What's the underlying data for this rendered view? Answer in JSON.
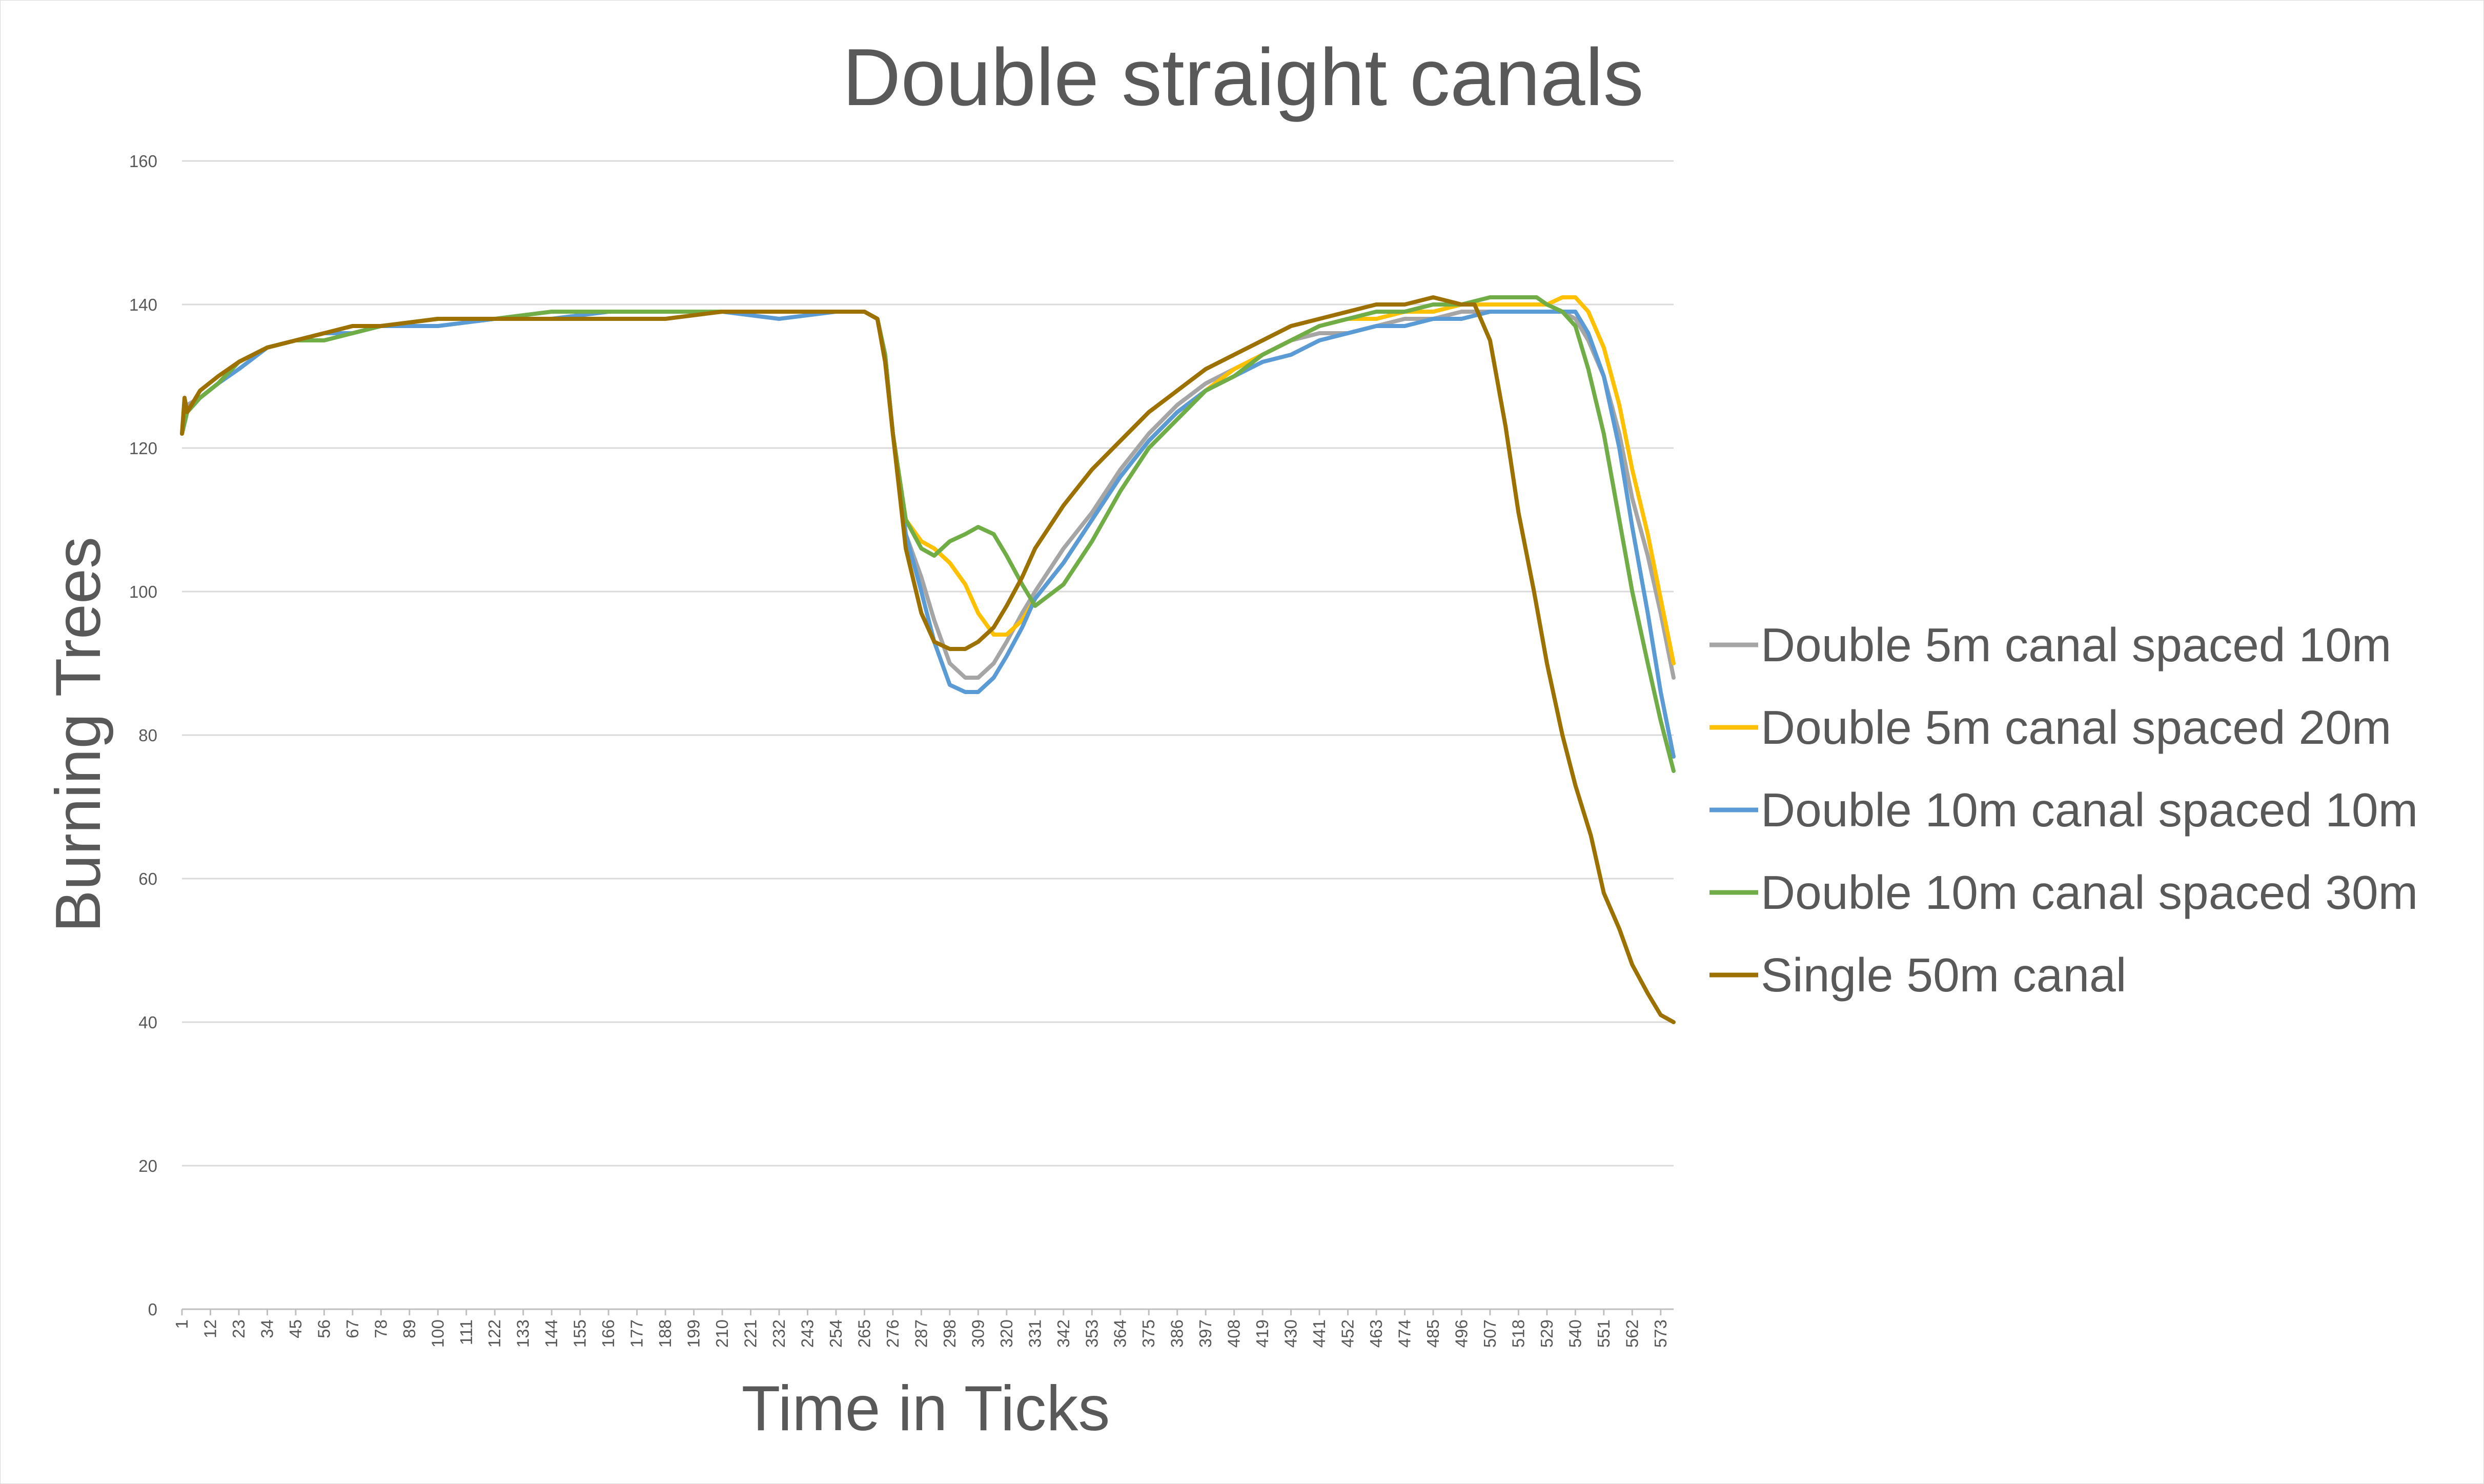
{
  "chart_data": {
    "type": "line",
    "title": "Double straight canals",
    "xlabel": "Time in Ticks",
    "ylabel": "Burning Trees",
    "ylim": [
      0,
      160
    ],
    "yticks": [
      0,
      20,
      40,
      60,
      80,
      100,
      120,
      140,
      160
    ],
    "xlim": [
      1,
      578
    ],
    "xticks": [
      1,
      12,
      23,
      34,
      45,
      56,
      67,
      78,
      89,
      100,
      111,
      122,
      133,
      144,
      155,
      166,
      177,
      188,
      199,
      210,
      221,
      232,
      243,
      254,
      265,
      276,
      287,
      298,
      309,
      320,
      331,
      342,
      353,
      364,
      375,
      386,
      397,
      408,
      419,
      430,
      441,
      452,
      463,
      474,
      485,
      496,
      507,
      518,
      529,
      540,
      551,
      562,
      573
    ],
    "grid": "horizontal",
    "legend_position": "right",
    "series": [
      {
        "name": "Double 5m canal spaced 10m",
        "color": "#a5a5a5",
        "x": [
          1,
          3,
          8,
          15,
          23,
          34,
          45,
          56,
          67,
          78,
          100,
          122,
          144,
          166,
          188,
          210,
          232,
          254,
          265,
          270,
          273,
          276,
          281,
          287,
          292,
          298,
          304,
          309,
          315,
          320,
          326,
          331,
          342,
          353,
          364,
          375,
          386,
          397,
          408,
          419,
          430,
          441,
          452,
          463,
          474,
          485,
          496,
          507,
          518,
          529,
          535,
          540,
          545,
          551,
          557,
          562,
          568,
          573,
          578
        ],
        "y": [
          122,
          126,
          127,
          129,
          132,
          134,
          135,
          136,
          137,
          137,
          138,
          138,
          138,
          139,
          139,
          139,
          139,
          139,
          139,
          138,
          133,
          122,
          108,
          102,
          96,
          90,
          88,
          88,
          90,
          93,
          97,
          100,
          106,
          111,
          117,
          122,
          126,
          129,
          131,
          133,
          135,
          136,
          136,
          137,
          138,
          138,
          139,
          139,
          139,
          139,
          139,
          138,
          135,
          130,
          122,
          113,
          105,
          97,
          88
        ]
      },
      {
        "name": "Double 5m canal spaced 20m",
        "color": "#ffc000",
        "x": [
          1,
          3,
          8,
          15,
          23,
          34,
          45,
          56,
          67,
          78,
          100,
          122,
          144,
          166,
          188,
          210,
          232,
          254,
          265,
          270,
          273,
          276,
          281,
          287,
          292,
          298,
          304,
          309,
          315,
          320,
          326,
          331,
          342,
          353,
          364,
          375,
          386,
          397,
          408,
          419,
          430,
          441,
          452,
          463,
          474,
          485,
          496,
          507,
          518,
          529,
          535,
          540,
          545,
          551,
          557,
          562,
          568,
          573,
          578
        ],
        "y": [
          122,
          125,
          127,
          129,
          132,
          134,
          135,
          136,
          137,
          137,
          138,
          138,
          138,
          139,
          139,
          139,
          139,
          139,
          139,
          138,
          133,
          122,
          110,
          107,
          106,
          104,
          101,
          97,
          94,
          94,
          96,
          99,
          104,
          110,
          116,
          121,
          125,
          128,
          131,
          133,
          135,
          137,
          138,
          138,
          139,
          139,
          140,
          140,
          140,
          140,
          141,
          141,
          139,
          134,
          126,
          117,
          108,
          99,
          90
        ]
      },
      {
        "name": "Double 10m canal spaced 10m",
        "color": "#5b9bd5",
        "x": [
          1,
          3,
          8,
          15,
          23,
          34,
          45,
          56,
          67,
          78,
          100,
          122,
          144,
          166,
          188,
          210,
          232,
          254,
          265,
          270,
          273,
          276,
          281,
          287,
          292,
          298,
          304,
          309,
          315,
          320,
          326,
          331,
          342,
          353,
          364,
          375,
          386,
          397,
          408,
          419,
          430,
          441,
          452,
          463,
          474,
          485,
          496,
          507,
          518,
          529,
          535,
          540,
          545,
          551,
          557,
          562,
          568,
          573,
          578
        ],
        "y": [
          122,
          125,
          127,
          129,
          131,
          134,
          135,
          136,
          136,
          137,
          137,
          138,
          138,
          139,
          139,
          139,
          138,
          139,
          139,
          138,
          133,
          122,
          108,
          100,
          93,
          87,
          86,
          86,
          88,
          91,
          95,
          99,
          104,
          110,
          116,
          121,
          125,
          128,
          130,
          132,
          133,
          135,
          136,
          137,
          137,
          138,
          138,
          139,
          139,
          139,
          139,
          139,
          136,
          130,
          120,
          109,
          97,
          86,
          77
        ]
      },
      {
        "name": "Double 10m canal spaced 30m",
        "color": "#70ad47",
        "x": [
          1,
          3,
          8,
          15,
          23,
          34,
          45,
          56,
          67,
          78,
          100,
          122,
          144,
          166,
          188,
          210,
          232,
          254,
          265,
          270,
          273,
          276,
          281,
          287,
          292,
          298,
          304,
          309,
          315,
          320,
          326,
          331,
          342,
          353,
          364,
          375,
          386,
          397,
          408,
          419,
          430,
          441,
          452,
          463,
          474,
          485,
          496,
          507,
          518,
          525,
          529,
          535,
          540,
          545,
          551,
          557,
          562,
          568,
          573,
          578
        ],
        "y": [
          122,
          125,
          127,
          129,
          132,
          134,
          135,
          135,
          136,
          137,
          138,
          138,
          139,
          139,
          139,
          139,
          139,
          139,
          139,
          138,
          133,
          122,
          110,
          106,
          105,
          107,
          108,
          109,
          108,
          105,
          101,
          98,
          101,
          107,
          114,
          120,
          124,
          128,
          130,
          133,
          135,
          137,
          138,
          139,
          139,
          140,
          140,
          141,
          141,
          141,
          140,
          139,
          137,
          131,
          122,
          110,
          100,
          90,
          82,
          75
        ]
      },
      {
        "name": "Single 50m canal",
        "color": "#9c7100",
        "x": [
          1,
          2,
          3,
          8,
          15,
          23,
          34,
          45,
          56,
          67,
          78,
          100,
          122,
          144,
          166,
          188,
          210,
          232,
          254,
          265,
          270,
          273,
          276,
          281,
          287,
          292,
          298,
          304,
          309,
          315,
          320,
          326,
          331,
          342,
          353,
          364,
          375,
          386,
          397,
          408,
          419,
          430,
          441,
          452,
          463,
          474,
          485,
          496,
          501,
          507,
          513,
          518,
          524,
          529,
          535,
          540,
          546,
          551,
          557,
          562,
          568,
          573,
          578
        ],
        "y": [
          122,
          127,
          125,
          128,
          130,
          132,
          134,
          135,
          136,
          137,
          137,
          138,
          138,
          138,
          138,
          138,
          139,
          139,
          139,
          139,
          138,
          132,
          122,
          106,
          97,
          93,
          92,
          92,
          93,
          95,
          98,
          102,
          106,
          112,
          117,
          121,
          125,
          128,
          131,
          133,
          135,
          137,
          138,
          139,
          140,
          140,
          141,
          140,
          140,
          135,
          123,
          111,
          100,
          90,
          80,
          73,
          66,
          58,
          53,
          48,
          44,
          41,
          40
        ]
      }
    ]
  }
}
